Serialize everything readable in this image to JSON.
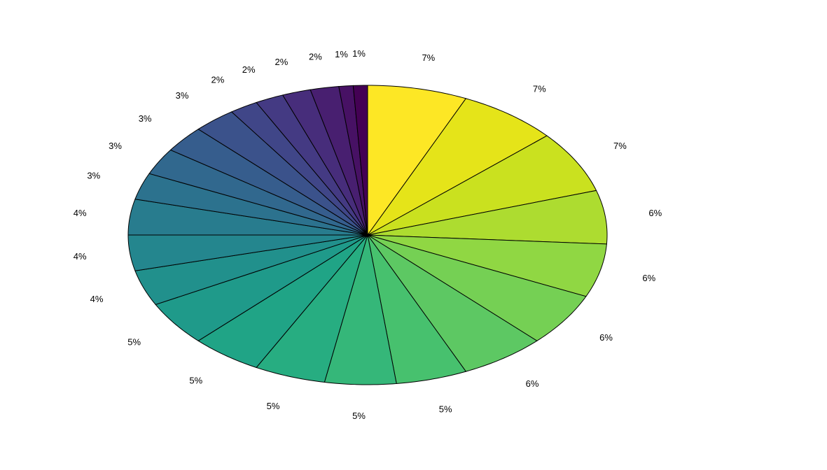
{
  "chart_data": {
    "type": "pie",
    "title": "",
    "direction": "clockwise",
    "start": "top",
    "labels": [
      "7%",
      "7%",
      "7%",
      "6%",
      "6%",
      "6%",
      "6%",
      "5%",
      "5%",
      "5%",
      "5%",
      "5%",
      "4%",
      "4%",
      "4%",
      "3%",
      "3%",
      "3%",
      "3%",
      "2%",
      "2%",
      "2%",
      "2%",
      "1%",
      "1%"
    ],
    "values": [
      7,
      7,
      7,
      6,
      6,
      6,
      6,
      5,
      5,
      5,
      5,
      5,
      4,
      4,
      4,
      3,
      3,
      3,
      3,
      2,
      2,
      2,
      2,
      1,
      1
    ],
    "colors": [
      "#FDE725",
      "#E5E419",
      "#CAE11F",
      "#ADDC30",
      "#90D743",
      "#75D054",
      "#5DC863",
      "#47C16E",
      "#35B779",
      "#27AD81",
      "#20A486",
      "#1F9A8A",
      "#21908C",
      "#24868E",
      "#287C8E",
      "#2C728E",
      "#31688E",
      "#365D8D",
      "#3B528B",
      "#404688",
      "#443A83",
      "#472D7B",
      "#481F70",
      "#471164",
      "#440154"
    ],
    "edge_color": "#000000",
    "legend": "none"
  }
}
